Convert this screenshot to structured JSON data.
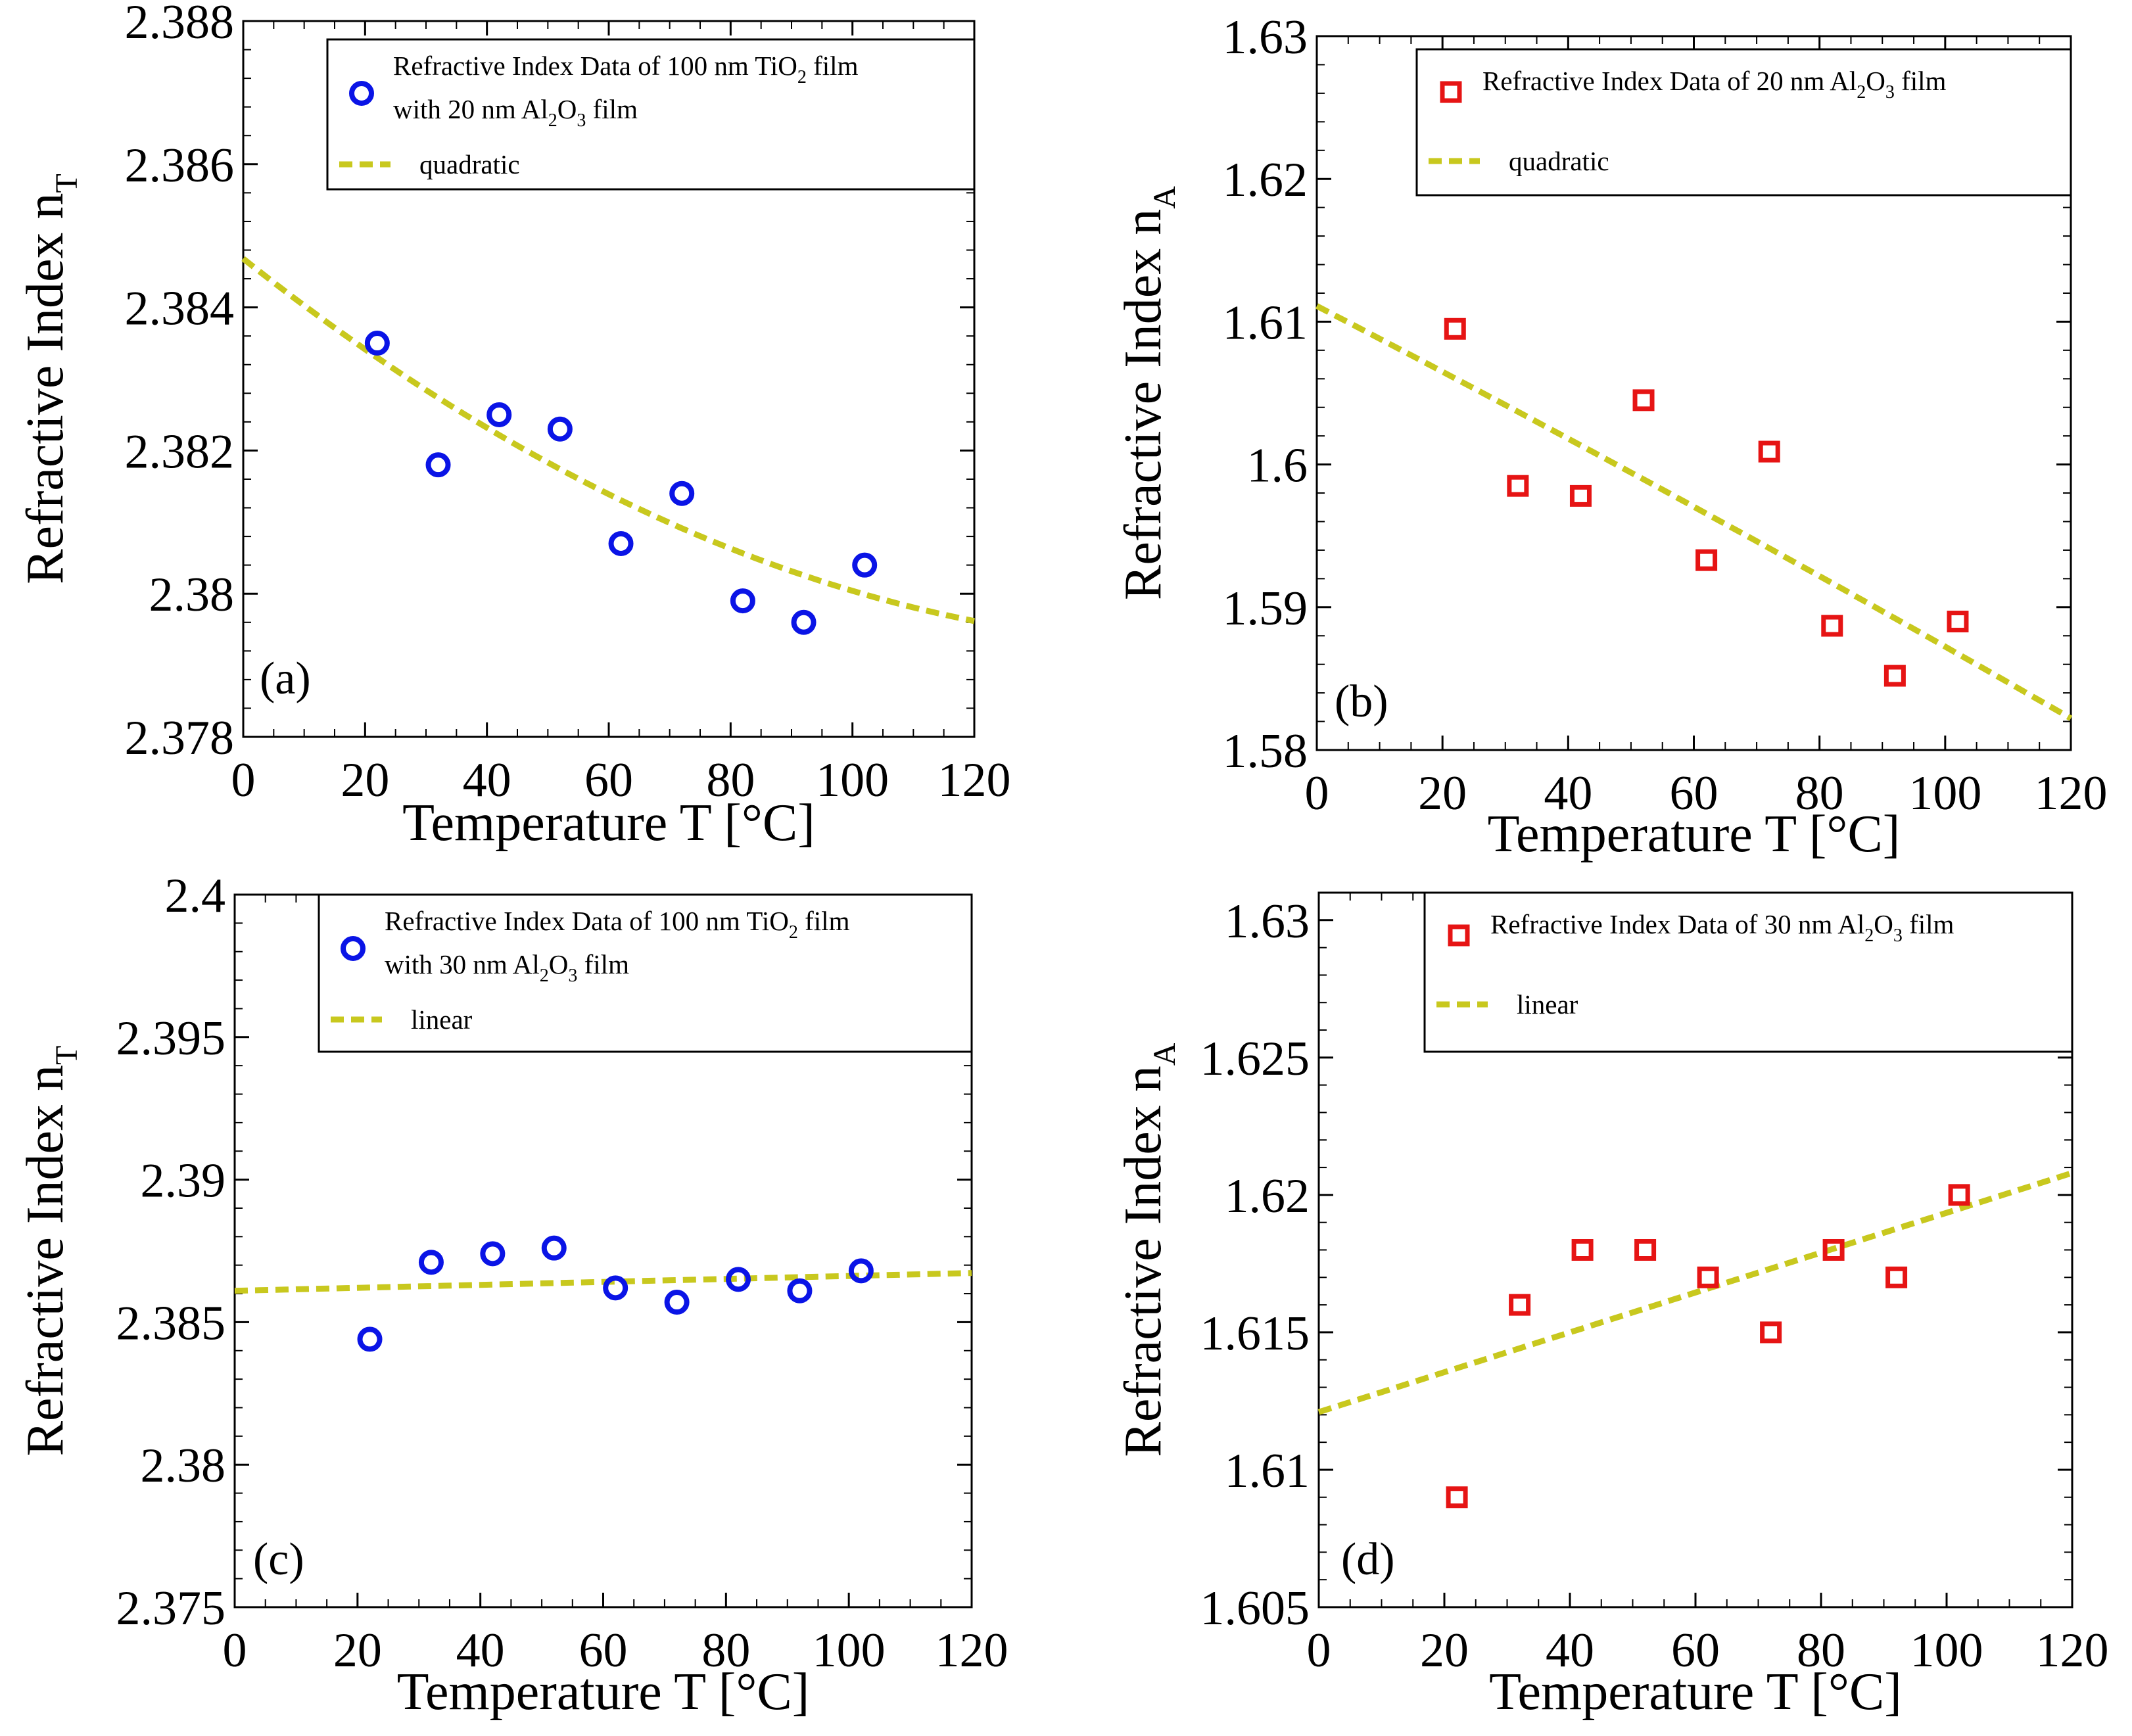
{
  "chart_data": [
    {
      "id": "a",
      "panel_label": "(a)",
      "type": "scatter",
      "marker": "circle",
      "marker_color": "#0a14e6",
      "fit_color": "#c8c81e",
      "xlabel": "Temperature T [°C]",
      "ylabel_main": "Refractive Index n",
      "ylabel_sub": "T",
      "xlim": [
        0,
        120
      ],
      "ylim": [
        2.378,
        2.388
      ],
      "xticks": [
        0,
        20,
        40,
        60,
        80,
        100,
        120
      ],
      "yticks": [
        2.378,
        2.38,
        2.382,
        2.384,
        2.386,
        2.388
      ],
      "ytick_labels": [
        "2.378",
        "2.38",
        "2.382",
        "2.384",
        "2.386",
        "2.388"
      ],
      "x": [
        22,
        32,
        42,
        52,
        62,
        72,
        82,
        92,
        102
      ],
      "y": [
        2.3835,
        2.3818,
        2.3825,
        2.3823,
        2.3807,
        2.3814,
        2.3799,
        2.3796,
        2.3804
      ],
      "fit": {
        "kind": "quadratic",
        "a": 2.38468,
        "b": -6.75e-05,
        "c": 2.11e-07
      },
      "legend": {
        "data_line1": [
          "Refractive Index Data of 100 nm TiO",
          "2",
          " film"
        ],
        "data_line2": [
          "with 20 nm Al",
          "2",
          "O",
          "3",
          " film"
        ],
        "fit_label": "quadratic"
      }
    },
    {
      "id": "b",
      "panel_label": "(b)",
      "type": "scatter",
      "marker": "square",
      "marker_color": "#e61414",
      "fit_color": "#c8c81e",
      "xlabel": "Temperature T [°C]",
      "ylabel_main": "Refractive Index n",
      "ylabel_sub": "A",
      "xlim": [
        0,
        120
      ],
      "ylim": [
        1.58,
        1.63
      ],
      "xticks": [
        0,
        20,
        40,
        60,
        80,
        100,
        120
      ],
      "yticks": [
        1.58,
        1.59,
        1.6,
        1.61,
        1.62,
        1.63
      ],
      "ytick_labels": [
        "1.58",
        "1.59",
        "1.6",
        "1.61",
        "1.62",
        "1.63"
      ],
      "x": [
        22,
        32,
        42,
        52,
        62,
        72,
        82,
        92,
        102
      ],
      "y": [
        1.6095,
        1.5985,
        1.5978,
        1.6045,
        1.5933,
        1.6009,
        1.5887,
        1.5852,
        1.589
      ],
      "fit": {
        "kind": "quadratic",
        "a": 1.6111,
        "b": -0.000228,
        "c": -1.06e-07
      },
      "legend": {
        "data_line1": [
          "Refractive Index Data of 20 nm Al",
          "2",
          "O",
          "3",
          " film"
        ],
        "fit_label": "quadratic"
      }
    },
    {
      "id": "c",
      "panel_label": "(c)",
      "type": "scatter",
      "marker": "circle",
      "marker_color": "#0a14e6",
      "fit_color": "#c8c81e",
      "xlabel": "Temperature T [°C]",
      "ylabel_main": "Refractive Index n",
      "ylabel_sub": "T",
      "xlim": [
        0,
        120
      ],
      "ylim": [
        2.375,
        2.4
      ],
      "xticks": [
        0,
        20,
        40,
        60,
        80,
        100,
        120
      ],
      "yticks": [
        2.375,
        2.38,
        2.385,
        2.39,
        2.395,
        2.4
      ],
      "ytick_labels": [
        "2.375",
        "2.38",
        "2.385",
        "2.39",
        "2.395",
        "2.4"
      ],
      "x": [
        22,
        32,
        42,
        52,
        62,
        72,
        82,
        92,
        102
      ],
      "y": [
        2.3844,
        2.3871,
        2.3874,
        2.3876,
        2.3862,
        2.3857,
        2.3865,
        2.3861,
        2.3868
      ],
      "fit": {
        "kind": "linear",
        "a": 2.3861,
        "b": 5.2e-06
      },
      "legend": {
        "data_line1": [
          "Refractive Index Data of 100 nm TiO",
          "2",
          " film"
        ],
        "data_line2": [
          "with 30 nm Al",
          "2",
          "O",
          "3",
          " film"
        ],
        "fit_label": "linear"
      }
    },
    {
      "id": "d",
      "panel_label": "(d)",
      "type": "scatter",
      "marker": "square",
      "marker_color": "#e61414",
      "fit_color": "#c8c81e",
      "xlabel": "Temperature T [°C]",
      "ylabel_main": "Refractive Index n",
      "ylabel_sub": "A",
      "xlim": [
        0,
        120
      ],
      "ylim": [
        1.605,
        1.631
      ],
      "xticks": [
        0,
        20,
        40,
        60,
        80,
        100,
        120
      ],
      "yticks": [
        1.605,
        1.61,
        1.615,
        1.62,
        1.625,
        1.63
      ],
      "ytick_labels": [
        "1.605",
        "1.61",
        "1.615",
        "1.62",
        "1.625",
        "1.63"
      ],
      "x": [
        22,
        32,
        42,
        52,
        62,
        72,
        82,
        92,
        102
      ],
      "y": [
        1.609,
        1.616,
        1.618,
        1.618,
        1.617,
        1.615,
        1.618,
        1.617,
        1.62
      ],
      "fit": {
        "kind": "linear",
        "a": 1.6121,
        "b": 7.25e-05
      },
      "legend": {
        "data_line1": [
          "Refractive Index Data of 30 nm Al",
          "2",
          "O",
          "3",
          " film"
        ],
        "fit_label": "linear"
      }
    }
  ]
}
